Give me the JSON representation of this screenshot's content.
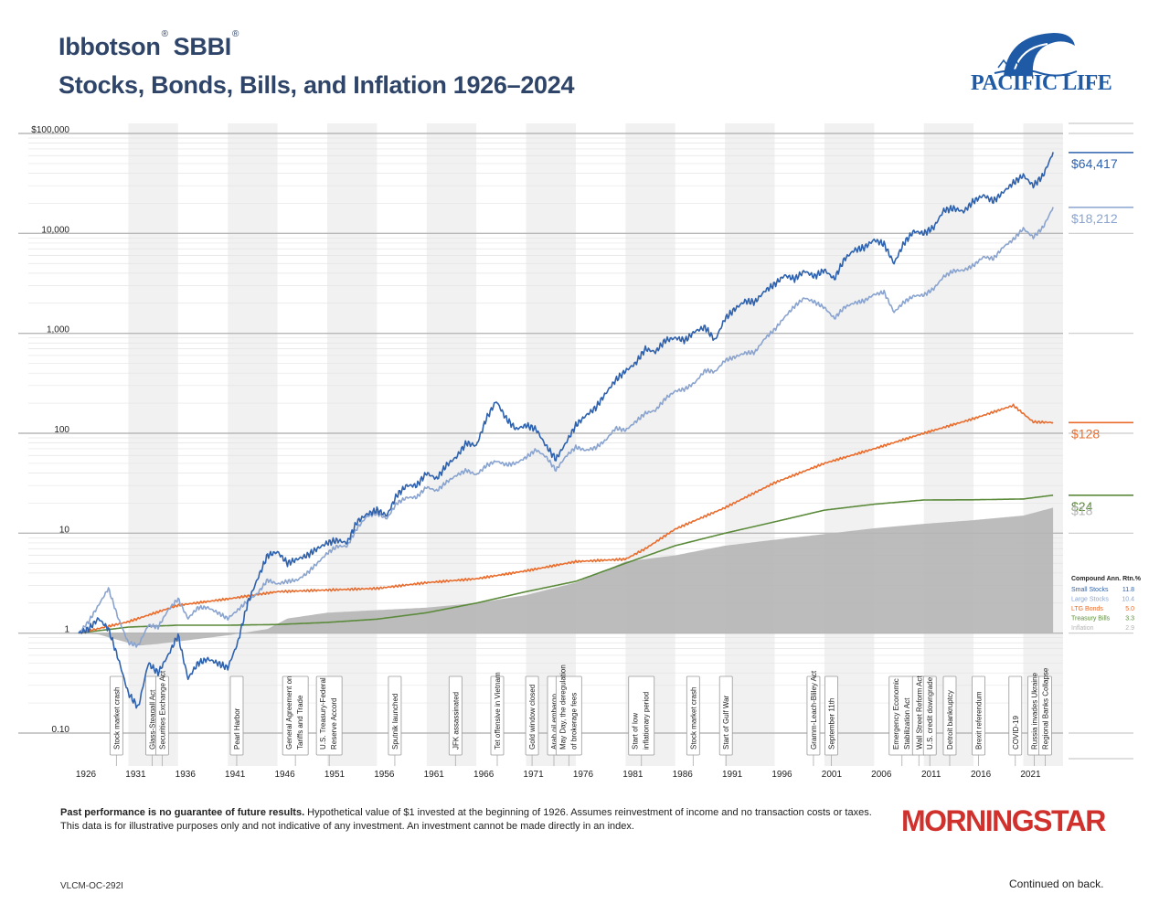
{
  "header": {
    "brand": "Ibbotson",
    "reg": "®",
    "product": "SBBI",
    "title": "Stocks, Bonds, Bills, and Inflation 1926–2024",
    "logo_text": "PACIFIC LIFE"
  },
  "chart_data": {
    "type": "line",
    "y_scale": "log",
    "ylim": [
      0.05,
      100000
    ],
    "y_ticks": [
      {
        "v": 100000,
        "label": "$100,000"
      },
      {
        "v": 10000,
        "label": "10,000"
      },
      {
        "v": 1000,
        "label": "1,000"
      },
      {
        "v": 100,
        "label": "100"
      },
      {
        "v": 10,
        "label": "10"
      },
      {
        "v": 1,
        "label": "1"
      },
      {
        "v": 0.1,
        "label": "0.10"
      }
    ],
    "xlim": [
      1926,
      2025
    ],
    "x_ticks": [
      1926,
      1931,
      1936,
      1941,
      1946,
      1951,
      1956,
      1961,
      1966,
      1971,
      1976,
      1981,
      1986,
      1991,
      1996,
      2001,
      2006,
      2011,
      2016,
      2021
    ],
    "shaded_bands": [
      [
        1931,
        1936
      ],
      [
        1941,
        1946
      ],
      [
        1951,
        1956
      ],
      [
        1961,
        1966
      ],
      [
        1971,
        1976
      ],
      [
        1981,
        1986
      ],
      [
        1991,
        1996
      ],
      [
        2001,
        2006
      ],
      [
        2011,
        2016
      ],
      [
        2021,
        2025
      ]
    ],
    "series": [
      {
        "name": "Small Stocks",
        "color": "#2e62ae",
        "end_label": "$64,417",
        "return": "11.8",
        "x": [
          1926,
          1927,
          1928,
          1929,
          1930,
          1931,
          1932,
          1933,
          1934,
          1935,
          1936,
          1937,
          1938,
          1939,
          1940,
          1941,
          1942,
          1943,
          1944,
          1945,
          1946,
          1947,
          1948,
          1949,
          1950,
          1951,
          1952,
          1953,
          1954,
          1955,
          1956,
          1957,
          1958,
          1959,
          1960,
          1961,
          1962,
          1963,
          1964,
          1965,
          1966,
          1967,
          1968,
          1969,
          1970,
          1971,
          1972,
          1973,
          1974,
          1975,
          1976,
          1977,
          1978,
          1979,
          1980,
          1981,
          1982,
          1983,
          1984,
          1985,
          1986,
          1987,
          1988,
          1989,
          1990,
          1991,
          1992,
          1993,
          1994,
          1995,
          1996,
          1997,
          1998,
          1999,
          2000,
          2001,
          2002,
          2003,
          2004,
          2005,
          2006,
          2007,
          2008,
          2009,
          2010,
          2011,
          2012,
          2013,
          2014,
          2015,
          2016,
          2017,
          2018,
          2019,
          2020,
          2021,
          2022,
          2023,
          2024
        ],
        "values": [
          1.0,
          1.1,
          1.4,
          1.1,
          0.55,
          0.25,
          0.18,
          0.5,
          0.4,
          0.6,
          0.95,
          0.35,
          0.5,
          0.55,
          0.5,
          0.45,
          0.8,
          2.0,
          3.5,
          6.0,
          6.5,
          5.0,
          5.5,
          6.0,
          7.0,
          8.0,
          8.5,
          8.0,
          13.0,
          15.5,
          17.0,
          15.0,
          24.0,
          30.0,
          30.0,
          40.0,
          35.0,
          48.0,
          58.0,
          80.0,
          75.0,
          140.0,
          210.0,
          140.0,
          110.0,
          120.0,
          110.0,
          75.0,
          55.0,
          80.0,
          120.0,
          150.0,
          180.0,
          250.0,
          340.0,
          420.0,
          500.0,
          700.0,
          650.0,
          850.0,
          900.0,
          850.0,
          1050.0,
          1150.0,
          850.0,
          1400.0,
          1750.0,
          2100.0,
          2050.0,
          2650.0,
          3100.0,
          3800.0,
          3500.0,
          4200.0,
          3700.0,
          4300.0,
          3500.0,
          5500.0,
          6800.0,
          7200.0,
          8600.0,
          7800.0,
          5000.0,
          8000.0,
          10500.0,
          10000.0,
          11500.0,
          17000.0,
          17800.0,
          16500.0,
          21000.0,
          24000.0,
          21000.0,
          26000.0,
          32000.0,
          38000.0,
          30000.0,
          38000.0,
          64417.0
        ]
      },
      {
        "name": "Large Stocks",
        "color": "#8aa4cf",
        "end_label": "$18,212",
        "return": "10.4",
        "x": [
          1926,
          1927,
          1928,
          1929,
          1930,
          1931,
          1932,
          1933,
          1934,
          1935,
          1936,
          1937,
          1938,
          1939,
          1940,
          1941,
          1942,
          1943,
          1944,
          1945,
          1946,
          1947,
          1948,
          1949,
          1950,
          1951,
          1952,
          1953,
          1954,
          1955,
          1956,
          1957,
          1958,
          1959,
          1960,
          1961,
          1962,
          1963,
          1964,
          1965,
          1966,
          1967,
          1968,
          1969,
          1970,
          1971,
          1972,
          1973,
          1974,
          1975,
          1976,
          1977,
          1978,
          1979,
          1980,
          1981,
          1982,
          1983,
          1984,
          1985,
          1986,
          1987,
          1988,
          1989,
          1990,
          1991,
          1992,
          1993,
          1994,
          1995,
          1996,
          1997,
          1998,
          1999,
          2000,
          2001,
          2002,
          2003,
          2004,
          2005,
          2006,
          2007,
          2008,
          2009,
          2010,
          2011,
          2012,
          2013,
          2014,
          2015,
          2016,
          2017,
          2018,
          2019,
          2020,
          2021,
          2022,
          2023,
          2024
        ],
        "values": [
          1.0,
          1.3,
          1.9,
          2.8,
          1.4,
          0.8,
          0.75,
          1.2,
          1.15,
          1.7,
          2.2,
          1.4,
          1.8,
          1.8,
          1.6,
          1.4,
          1.7,
          2.1,
          2.5,
          3.4,
          3.1,
          3.3,
          3.4,
          4.0,
          5.0,
          6.3,
          7.4,
          7.4,
          11.2,
          14.8,
          15.8,
          14.0,
          20.0,
          22.7,
          22.9,
          29.0,
          26.5,
          32.5,
          37.9,
          42.6,
          38.3,
          47.5,
          52.7,
          48.3,
          50.2,
          57.4,
          68.3,
          58.2,
          42.8,
          58.8,
          72.6,
          67.4,
          71.8,
          85.1,
          112.6,
          107.0,
          130.0,
          159.0,
          169.0,
          222.0,
          264.0,
          277.0,
          323.0,
          425.0,
          412.0,
          537.0,
          578.0,
          636.0,
          644.0,
          886.0,
          1090.0,
          1453.0,
          1869.0,
          2262.0,
          2056.0,
          1812.0,
          1411.0,
          1816.0,
          2013.0,
          2112.0,
          2446.0,
          2580.0,
          1625.0,
          2055.0,
          2364.0,
          2414.0,
          2800.0,
          3707.0,
          4215.0,
          4273.0,
          4784.0,
          5828.0,
          5573.0,
          7328.0,
          8677.0,
          11167.0,
          9145.0,
          11548.0,
          18212.0
        ]
      },
      {
        "name": "LTG Bonds",
        "color": "#e96c2c",
        "end_label": "$128",
        "return": "5.0",
        "x": [
          1926,
          1931,
          1936,
          1941,
          1946,
          1951,
          1956,
          1961,
          1966,
          1971,
          1976,
          1981,
          1983,
          1986,
          1991,
          1996,
          2001,
          2006,
          2011,
          2016,
          2020,
          2022,
          2024
        ],
        "values": [
          1.0,
          1.3,
          1.9,
          2.2,
          2.6,
          2.7,
          2.8,
          3.2,
          3.5,
          4.2,
          5.2,
          5.5,
          7.0,
          11.0,
          18.0,
          32.0,
          50.0,
          70.0,
          100.0,
          140.0,
          190.0,
          130.0,
          128.0
        ]
      },
      {
        "name": "Treasury Bills",
        "color": "#5a8a3a",
        "end_label": "$24",
        "return": "3.3",
        "x": [
          1926,
          1931,
          1936,
          1941,
          1946,
          1951,
          1956,
          1961,
          1966,
          1971,
          1976,
          1981,
          1986,
          1991,
          1996,
          2001,
          2006,
          2011,
          2016,
          2021,
          2024
        ],
        "values": [
          1.0,
          1.15,
          1.2,
          1.2,
          1.22,
          1.28,
          1.38,
          1.6,
          2.0,
          2.6,
          3.3,
          5.0,
          7.5,
          10.0,
          13.0,
          17.0,
          19.5,
          21.5,
          21.6,
          22.0,
          24.0
        ]
      },
      {
        "name": "Inflation",
        "color": "#b5b5b5",
        "end_label": "$18",
        "return": "2.9",
        "area": true,
        "x": [
          1926,
          1928,
          1932,
          1934,
          1941,
          1945,
          1947,
          1951,
          1956,
          1961,
          1966,
          1971,
          1976,
          1981,
          1986,
          1991,
          1996,
          2001,
          2006,
          2011,
          2016,
          2021,
          2024
        ],
        "values": [
          1.0,
          0.97,
          0.75,
          0.78,
          0.95,
          1.1,
          1.4,
          1.6,
          1.7,
          1.8,
          2.0,
          2.4,
          3.2,
          5.2,
          6.0,
          7.5,
          8.6,
          9.8,
          11.2,
          12.4,
          13.5,
          15.0,
          18.0
        ]
      }
    ],
    "legend": {
      "title": "Compound Ann. Rtn.%",
      "position": "right"
    },
    "events": [
      {
        "year": 1929.8,
        "text": "Stock market crash"
      },
      {
        "year": 1933.4,
        "text": "Glass-Steagall Act"
      },
      {
        "year": 1934.4,
        "text": "Securities Exchange Act"
      },
      {
        "year": 1941.9,
        "text": "Pearl Harbor"
      },
      {
        "year": 1947.8,
        "text": "General Agreement on Tariffs and Trade"
      },
      {
        "year": 1951.2,
        "text": "U.S. Treasury-Federal Reserve Accord"
      },
      {
        "year": 1957.8,
        "text": "Sputnik launched"
      },
      {
        "year": 1963.9,
        "text": "JFK assassinated"
      },
      {
        "year": 1968.1,
        "text": "Tet offensive in Vietnam"
      },
      {
        "year": 1971.6,
        "text": "Gold window closed"
      },
      {
        "year": 1973.8,
        "text": "Arab oil embargo"
      },
      {
        "year": 1975.3,
        "text": "May Day, the deregulation of brokerage fees"
      },
      {
        "year": 1982.6,
        "text": "Start of low inflationary period"
      },
      {
        "year": 1987.8,
        "text": "Stock market crash"
      },
      {
        "year": 1991.1,
        "text": "Start of Gulf War"
      },
      {
        "year": 1999.9,
        "text": "Gramm-Leach-Bliley Act"
      },
      {
        "year": 2001.7,
        "text": "September 11th"
      },
      {
        "year": 2008.8,
        "text": "Emergency Economic Stabilization Act"
      },
      {
        "year": 2010.5,
        "text": "Wall Street Reform Act"
      },
      {
        "year": 2011.6,
        "text": "U.S. credit downgrade"
      },
      {
        "year": 2013.6,
        "text": "Detroit bankruptcy"
      },
      {
        "year": 2016.5,
        "text": "Brexit referendum"
      },
      {
        "year": 2020.2,
        "text": "COVID-19"
      },
      {
        "year": 2022.1,
        "text": "Russia invades Ukraine"
      },
      {
        "year": 2023.2,
        "text": "Regional Banks Collapse"
      }
    ]
  },
  "footer": {
    "note_bold": "Past performance is no guarantee of future results.",
    "note_rest": " Hypothetical value of $1 invested at the beginning of 1926. Assumes reinvestment of income and no transaction costs or taxes.",
    "note_line2": "This data is for illustrative purposes only and not indicative of any investment. An investment cannot be made directly in an index.",
    "morningstar": "MORNINGSTAR",
    "code": "VLCM-OC-292I",
    "continued": "Continued on back."
  }
}
